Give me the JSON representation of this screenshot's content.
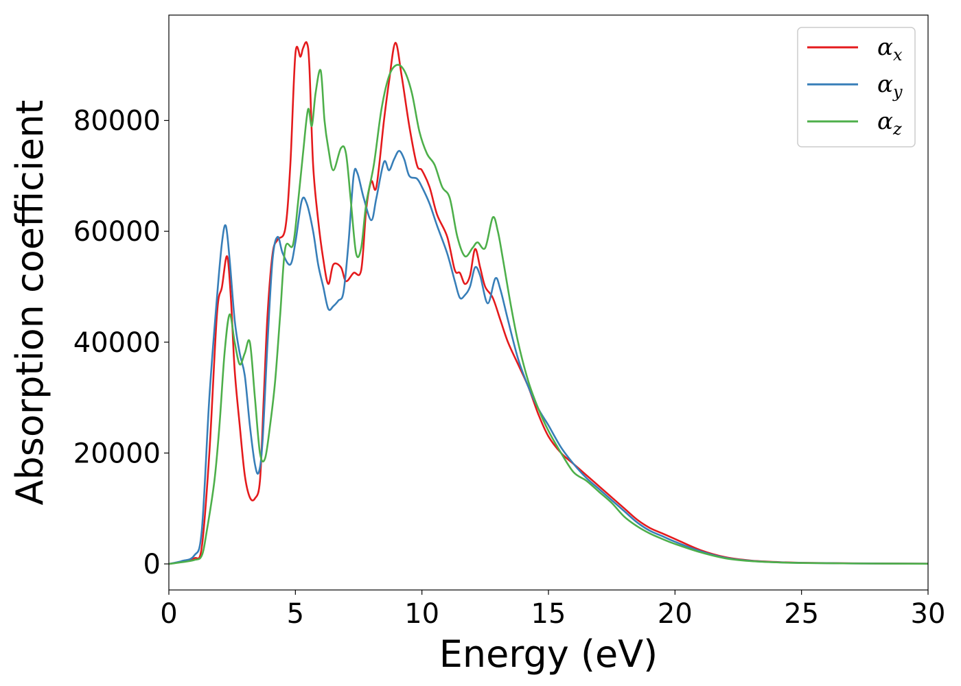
{
  "chart_data": {
    "type": "line",
    "title": "",
    "xlabel": "Energy (eV)",
    "ylabel": "Absorption coefficient",
    "xlim": [
      0,
      30
    ],
    "ylim": [
      -4700,
      99000
    ],
    "xticks": [
      0,
      5,
      10,
      15,
      20,
      25,
      30
    ],
    "xtick_labels": [
      "0",
      "5",
      "10",
      "15",
      "20",
      "25",
      "30"
    ],
    "yticks": [
      0,
      20000,
      40000,
      60000,
      80000
    ],
    "ytick_labels": [
      "0",
      "20000",
      "40000",
      "60000",
      "80000"
    ],
    "grid": false,
    "legend_position": "top-right",
    "series": [
      {
        "name": "α",
        "subscript": "x",
        "color": "#e41a1c",
        "x": [
          0,
          0.5,
          1.0,
          1.3,
          1.6,
          1.9,
          2.1,
          2.3,
          2.45,
          2.6,
          2.8,
          3.0,
          3.2,
          3.4,
          3.6,
          3.75,
          3.9,
          4.1,
          4.3,
          4.6,
          4.8,
          5.0,
          5.2,
          5.3,
          5.45,
          5.55,
          5.7,
          5.9,
          6.1,
          6.3,
          6.5,
          6.8,
          7.0,
          7.3,
          7.6,
          7.8,
          8.0,
          8.2,
          8.5,
          8.7,
          8.95,
          9.2,
          9.5,
          9.8,
          10.0,
          10.3,
          10.6,
          11.0,
          11.3,
          11.5,
          11.7,
          11.9,
          12.1,
          12.3,
          12.5,
          12.8,
          13.1,
          13.4,
          13.8,
          14.2,
          14.6,
          15.0,
          15.5,
          16.0,
          16.5,
          17.0,
          17.5,
          18.0,
          18.5,
          19.0,
          19.5,
          20.0,
          21.0,
          22.0,
          23.0,
          24.0,
          25.0,
          27.0,
          30.0
        ],
        "y": [
          0,
          400,
          1000,
          3000,
          20000,
          45000,
          50000,
          55500,
          48000,
          35000,
          25000,
          16000,
          12000,
          11800,
          15000,
          30000,
          45000,
          56000,
          58500,
          60500,
          72000,
          92000,
          91500,
          93000,
          94000,
          90000,
          72000,
          62000,
          55000,
          50500,
          54000,
          53500,
          51000,
          52500,
          53000,
          64000,
          69000,
          68000,
          80000,
          87000,
          94000,
          88000,
          79000,
          72000,
          71000,
          68000,
          63000,
          59000,
          53000,
          52500,
          50500,
          52000,
          56800,
          53500,
          50000,
          48000,
          44000,
          40000,
          36000,
          32000,
          27000,
          23000,
          20000,
          18000,
          16000,
          14000,
          12000,
          10000,
          8000,
          6500,
          5500,
          4500,
          2500,
          1200,
          600,
          350,
          200,
          100,
          50
        ]
      },
      {
        "name": "α",
        "subscript": "y",
        "color": "#377eb8",
        "x": [
          0,
          0.5,
          1.0,
          1.3,
          1.6,
          1.9,
          2.1,
          2.25,
          2.4,
          2.6,
          2.8,
          3.0,
          3.2,
          3.4,
          3.55,
          3.7,
          3.9,
          4.1,
          4.3,
          4.5,
          4.8,
          5.0,
          5.25,
          5.45,
          5.7,
          5.9,
          6.1,
          6.3,
          6.5,
          6.7,
          6.9,
          7.1,
          7.3,
          7.45,
          7.7,
          8.0,
          8.2,
          8.5,
          8.7,
          8.9,
          9.1,
          9.3,
          9.5,
          9.8,
          10.0,
          10.3,
          10.6,
          11.0,
          11.3,
          11.5,
          11.7,
          11.9,
          12.1,
          12.3,
          12.6,
          12.9,
          13.1,
          13.4,
          13.8,
          14.2,
          14.6,
          15.0,
          15.5,
          16.0,
          16.5,
          17.0,
          17.5,
          18.0,
          18.5,
          19.0,
          19.5,
          20.0,
          21.0,
          22.0,
          23.0,
          24.0,
          25.0,
          27.0,
          30.0
        ],
        "y": [
          0,
          500,
          1500,
          6000,
          30000,
          48000,
          58000,
          61000,
          55000,
          44000,
          38000,
          34000,
          25000,
          18000,
          16500,
          22000,
          40000,
          55000,
          59000,
          56000,
          54000,
          58000,
          65500,
          65000,
          60000,
          54000,
          50000,
          46000,
          46500,
          47500,
          49000,
          58000,
          70000,
          70500,
          66000,
          62000,
          66000,
          72500,
          71000,
          73000,
          74500,
          73000,
          70000,
          69500,
          68000,
          65000,
          61000,
          56000,
          51000,
          48000,
          48500,
          50000,
          53500,
          52000,
          47000,
          51500,
          49500,
          44000,
          37000,
          32000,
          28000,
          25000,
          21000,
          18000,
          15500,
          13500,
          11500,
          9500,
          7500,
          6000,
          5000,
          4000,
          2300,
          1100,
          550,
          300,
          180,
          90,
          40
        ]
      },
      {
        "name": "α",
        "subscript": "z",
        "color": "#4daf4a",
        "x": [
          0,
          0.5,
          1.0,
          1.3,
          1.5,
          1.8,
          2.0,
          2.2,
          2.4,
          2.6,
          2.8,
          3.0,
          3.2,
          3.4,
          3.6,
          3.8,
          4.0,
          4.2,
          4.4,
          4.6,
          4.9,
          5.1,
          5.3,
          5.5,
          5.65,
          5.8,
          6.0,
          6.15,
          6.3,
          6.5,
          6.8,
          7.0,
          7.2,
          7.4,
          7.6,
          7.8,
          8.1,
          8.4,
          8.7,
          9.0,
          9.3,
          9.6,
          9.9,
          10.2,
          10.5,
          10.8,
          11.1,
          11.4,
          11.7,
          12.0,
          12.2,
          12.5,
          12.8,
          13.0,
          13.2,
          13.5,
          13.8,
          14.2,
          14.6,
          15.0,
          15.5,
          16.0,
          16.5,
          17.0,
          17.5,
          18.0,
          18.5,
          19.0,
          19.5,
          20.0,
          21.0,
          22.0,
          23.0,
          24.0,
          25.0,
          27.0,
          30.0
        ],
        "y": [
          0,
          300,
          700,
          1500,
          6000,
          15000,
          25000,
          38000,
          45000,
          40000,
          36000,
          38000,
          40000,
          30000,
          20000,
          19000,
          25000,
          33000,
          45000,
          57000,
          57500,
          65000,
          74000,
          82000,
          79000,
          85000,
          89000,
          80000,
          75000,
          71000,
          75000,
          74000,
          65000,
          56000,
          57000,
          65000,
          72000,
          82000,
          88000,
          90000,
          89000,
          85000,
          78000,
          74000,
          72000,
          68000,
          66000,
          59000,
          55500,
          57000,
          58000,
          57000,
          62500,
          60000,
          55000,
          47000,
          40000,
          33000,
          28000,
          24000,
          20000,
          16500,
          15000,
          13000,
          11000,
          8500,
          6800,
          5500,
          4500,
          3600,
          2100,
          1000,
          500,
          280,
          170,
          80,
          30
        ]
      }
    ]
  }
}
